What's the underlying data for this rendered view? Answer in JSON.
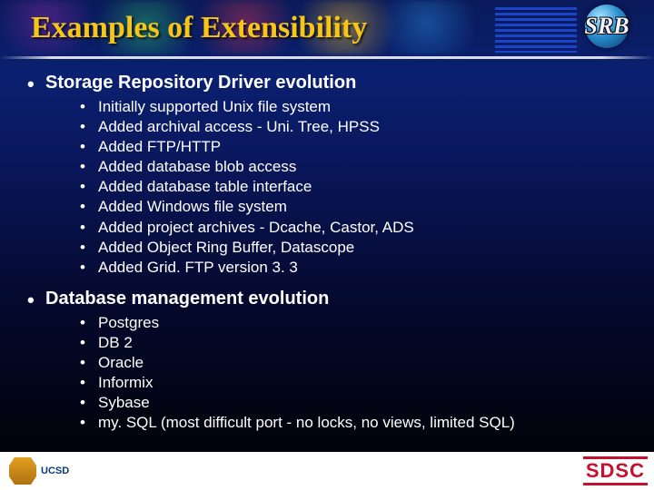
{
  "title": "Examples of Extensibility",
  "srb_label": "SRB",
  "sections": [
    {
      "heading": "Storage Repository Driver evolution",
      "items": [
        "Initially supported Unix file system",
        "Added archival access - Uni. Tree, HPSS",
        "Added FTP/HTTP",
        "Added database blob access",
        "Added database table interface",
        "Added Windows file system",
        "Added project archives - Dcache, Castor, ADS",
        "Added Object Ring Buffer, Datascope",
        "Added Grid. FTP version 3. 3"
      ]
    },
    {
      "heading": "Database management evolution",
      "items": [
        "Postgres",
        "DB 2",
        "Oracle",
        "Informix",
        "Sybase",
        "my. SQL (most difficult port - no locks, no views, limited SQL)"
      ]
    }
  ],
  "footer": {
    "left_label": "UCSD",
    "right_label": "SDSC"
  },
  "colors": {
    "title": "#f5c518",
    "body_text": "#ffffff",
    "bg_top": "#0a1a5a",
    "bg_bottom": "#000000",
    "footer_bg": "#ffffff",
    "sdsc": "#c8102e",
    "ucsd": "#0a3a70"
  }
}
